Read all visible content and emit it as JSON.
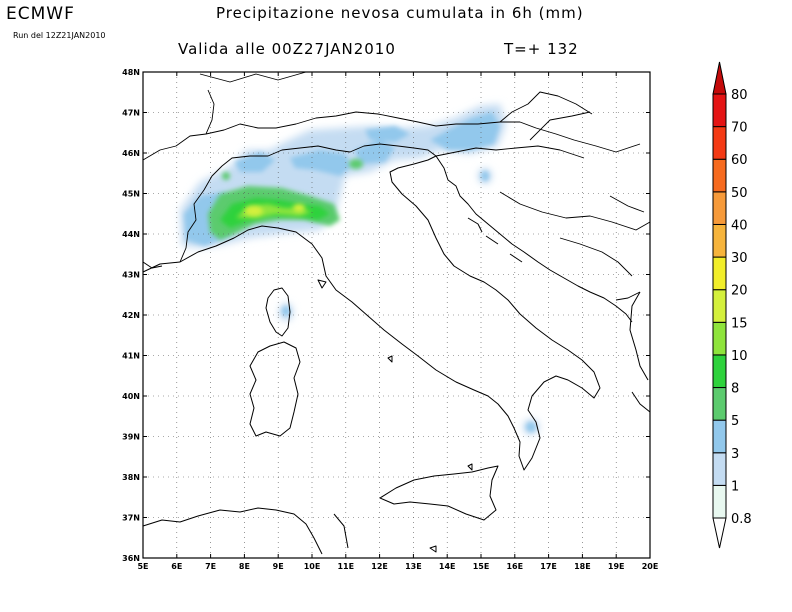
{
  "header": {
    "model": "ECMWF",
    "run": "Run del 12Z21JAN2010",
    "title": "Precipitazione nevosa cumulata in 6h (mm)",
    "valid": "Valida alle 00Z27JAN2010",
    "timestep": "T=+ 132"
  },
  "map": {
    "lon_range": [
      5,
      20
    ],
    "lat_range": [
      36,
      48
    ],
    "lon_ticks": [
      "5E",
      "6E",
      "7E",
      "8E",
      "9E",
      "10E",
      "11E",
      "12E",
      "13E",
      "14E",
      "15E",
      "16E",
      "17E",
      "18E",
      "19E",
      "20E"
    ],
    "lat_ticks": [
      "36N",
      "37N",
      "38N",
      "39N",
      "40N",
      "41N",
      "42N",
      "43N",
      "44N",
      "45N",
      "46N",
      "47N",
      "48N"
    ],
    "grid": "dotted"
  },
  "colorbar": {
    "levels": [
      "0.8",
      "1",
      "3",
      "5",
      "8",
      "10",
      "15",
      "20",
      "30",
      "40",
      "50",
      "60",
      "70",
      "80"
    ],
    "colors": [
      "#e8f8f0",
      "#c4dcf2",
      "#92c8ec",
      "#5ccb6e",
      "#2ed23c",
      "#8fe43c",
      "#d4f03c",
      "#f2ee2a",
      "#f6b43c",
      "#f69a3a",
      "#f66a1e",
      "#f43a14",
      "#e41414",
      "#c40a0a"
    ]
  },
  "snow_areas": [
    {
      "lon": 8.7,
      "lat": 44.65,
      "value": 15
    },
    {
      "lon": 7.0,
      "lat": 44.4,
      "value": 5
    },
    {
      "lon": 10.1,
      "lat": 44.6,
      "value": 8
    },
    {
      "lon": 11.2,
      "lat": 45.8,
      "value": 5
    },
    {
      "lon": 6.5,
      "lat": 45.6,
      "value": 3
    },
    {
      "lon": 13.8,
      "lat": 46.6,
      "value": 3
    },
    {
      "lon": 15.3,
      "lat": 46.7,
      "value": 3
    },
    {
      "lon": 9.1,
      "lat": 42.1,
      "value": 3
    },
    {
      "lon": 16.4,
      "lat": 39.2,
      "value": 3
    }
  ]
}
